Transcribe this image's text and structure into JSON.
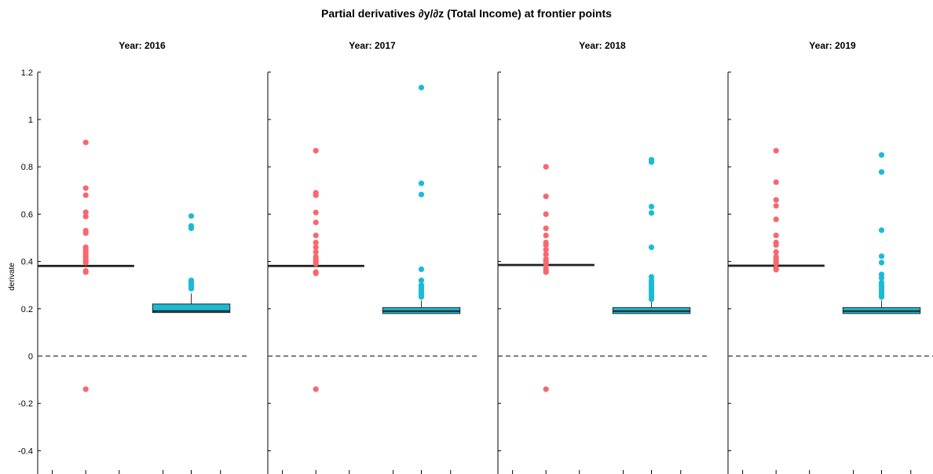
{
  "figure_title": "Partial derivatives ∂y/∂z (Total Income) at frontier points",
  "chart_data": {
    "type": "box",
    "ylabel": "derivate",
    "ylim": [
      -0.5,
      1.2
    ],
    "yticks": [
      -0.4,
      -0.2,
      0,
      0.2,
      0.4,
      0.6,
      0.8,
      1,
      1.2
    ],
    "ytick_labels": [
      "-0.4",
      "-0.2",
      "0",
      "0.2",
      "0.4",
      "0.6",
      "0.8",
      "1",
      "1.2"
    ],
    "reference_line": {
      "y": 0,
      "style": "dashed"
    },
    "group_colors": [
      "#f8676f",
      "#1bbbd6"
    ],
    "panels": [
      {
        "title": "Year: 2016",
        "groups": [
          {
            "color": "#f8676f",
            "q1": 0.378,
            "median": 0.381,
            "q3": 0.384,
            "whisker_low": 0.378,
            "whisker_high": 0.384,
            "outliers": [
              0.903,
              0.71,
              0.68,
              0.608,
              0.59,
              0.53,
              0.52,
              0.46,
              0.45,
              0.44,
              0.43,
              0.42,
              0.41,
              0.4,
              0.395,
              0.36,
              0.355,
              -0.14
            ]
          },
          {
            "color": "#1bbbd6",
            "q1": 0.184,
            "median": 0.19,
            "q3": 0.22,
            "whisker_low": 0.184,
            "whisker_high": 0.265,
            "outliers": [
              0.592,
              0.55,
              0.54,
              0.32,
              0.31,
              0.3,
              0.29,
              0.285
            ]
          }
        ]
      },
      {
        "title": "Year: 2017",
        "groups": [
          {
            "color": "#f8676f",
            "q1": 0.378,
            "median": 0.381,
            "q3": 0.384,
            "whisker_low": 0.378,
            "whisker_high": 0.384,
            "outliers": [
              0.868,
              0.69,
              0.68,
              0.607,
              0.565,
              0.51,
              0.48,
              0.46,
              0.44,
              0.42,
              0.41,
              0.4,
              0.39,
              0.355,
              0.35,
              -0.14
            ]
          },
          {
            "color": "#1bbbd6",
            "q1": 0.18,
            "median": 0.19,
            "q3": 0.205,
            "whisker_low": 0.18,
            "whisker_high": 0.235,
            "outliers": [
              1.135,
              0.73,
              0.683,
              0.367,
              0.32,
              0.3,
              0.29,
              0.28,
              0.27,
              0.26,
              0.25
            ]
          }
        ]
      },
      {
        "title": "Year: 2018",
        "groups": [
          {
            "color": "#f8676f",
            "q1": 0.382,
            "median": 0.385,
            "q3": 0.388,
            "whisker_low": 0.382,
            "whisker_high": 0.388,
            "outliers": [
              0.8,
              0.675,
              0.6,
              0.54,
              0.51,
              0.48,
              0.47,
              0.45,
              0.43,
              0.41,
              0.4,
              0.39,
              0.37,
              0.36,
              0.355,
              -0.14
            ]
          },
          {
            "color": "#1bbbd6",
            "q1": 0.18,
            "median": 0.19,
            "q3": 0.205,
            "whisker_low": 0.18,
            "whisker_high": 0.235,
            "outliers": [
              0.83,
              0.82,
              0.632,
              0.605,
              0.46,
              0.335,
              0.32,
              0.31,
              0.3,
              0.29,
              0.28,
              0.27,
              0.26,
              0.25,
              0.24
            ]
          }
        ]
      },
      {
        "title": "Year: 2019",
        "groups": [
          {
            "color": "#f8676f",
            "q1": 0.379,
            "median": 0.382,
            "q3": 0.385,
            "whisker_low": 0.379,
            "whisker_high": 0.385,
            "outliers": [
              0.868,
              0.735,
              0.66,
              0.635,
              0.578,
              0.51,
              0.48,
              0.47,
              0.44,
              0.42,
              0.41,
              0.4,
              0.39,
              0.37,
              0.365
            ]
          },
          {
            "color": "#1bbbd6",
            "q1": 0.18,
            "median": 0.19,
            "q3": 0.205,
            "whisker_low": 0.18,
            "whisker_high": 0.235,
            "outliers": [
              0.85,
              0.778,
              0.532,
              0.422,
              0.395,
              0.345,
              0.33,
              0.31,
              0.3,
              0.29,
              0.28,
              0.27,
              0.26,
              0.25
            ]
          }
        ]
      }
    ]
  }
}
